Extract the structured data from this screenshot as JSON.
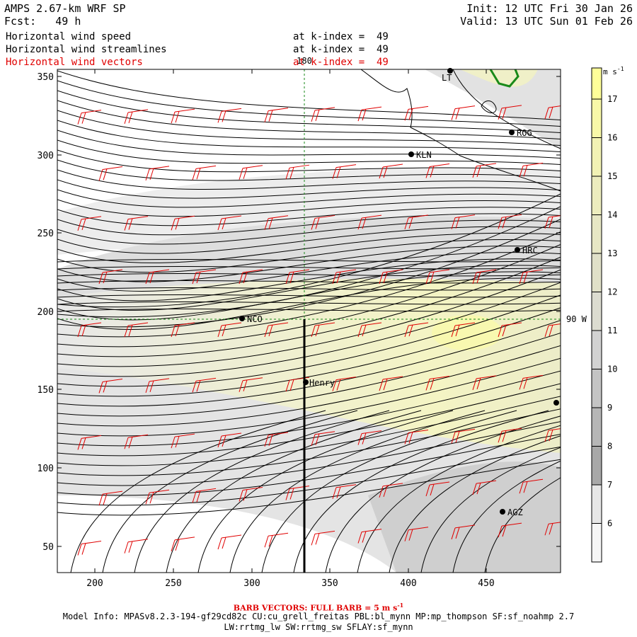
{
  "header": {
    "title": "AMPS 2.67-km WRF SP",
    "forecast": "Fcst:   49 h",
    "init": "Init: 12 UTC Fri 30 Jan 26",
    "valid": "Valid: 13 UTC Sun 01 Feb 26",
    "fields": [
      {
        "name": "Horizontal wind speed",
        "level": "at k-index =  49",
        "color": "#000000"
      },
      {
        "name": "Horizontal wind streamlines",
        "level": "at k-index =  49",
        "color": "#000000"
      },
      {
        "name": "Horizontal wind vectors",
        "level": "at k-index =  49",
        "color": "#e00000"
      }
    ]
  },
  "map": {
    "x_ticks": [
      "200",
      "250",
      "300",
      "350",
      "400",
      "450"
    ],
    "y_ticks": [
      "350",
      "300",
      "250",
      "200",
      "150",
      "100",
      "50"
    ],
    "meridian_label": "180",
    "parallel_label": "90 W",
    "stations": [
      {
        "id": "LT"
      },
      {
        "id": "ROG"
      },
      {
        "id": "KLN"
      },
      {
        "id": "HRC"
      },
      {
        "id": "NCO"
      },
      {
        "id": "Henry"
      },
      {
        "id": "AGZ"
      },
      {
        "id": ""
      }
    ]
  },
  "colorbar": {
    "unit": "m s",
    "unit_exp": "-1",
    "levels": [
      "17",
      "16",
      "15",
      "14",
      "13",
      "12",
      "11",
      "10",
      "9",
      "8",
      "7",
      "6"
    ],
    "colors": [
      "#ffff99",
      "#f8f8a8",
      "#f2f2b4",
      "#ececbe",
      "#e6e6c4",
      "#e0e0c8",
      "#dcdcd0",
      "#d2d2d2",
      "#c4c4c4",
      "#b6b6b6",
      "#a8a8a8",
      "#e6e6e6",
      "#f6f6f6"
    ]
  },
  "footer": {
    "barb_label": "BARB VECTORS: FULL BARB = 5 m s",
    "barb_exp": "-1",
    "model_info": "Model Info: MPASv8.2.3-194-gf29cd82c CU:cu_grell_freitas PBL:bl_mynn MP:mp_thompson SF:sf_noahmp 2.7",
    "model_info2": "LW:rrtmg_lw SW:rrtmg_sw SFLAY:sf_mynn"
  }
}
